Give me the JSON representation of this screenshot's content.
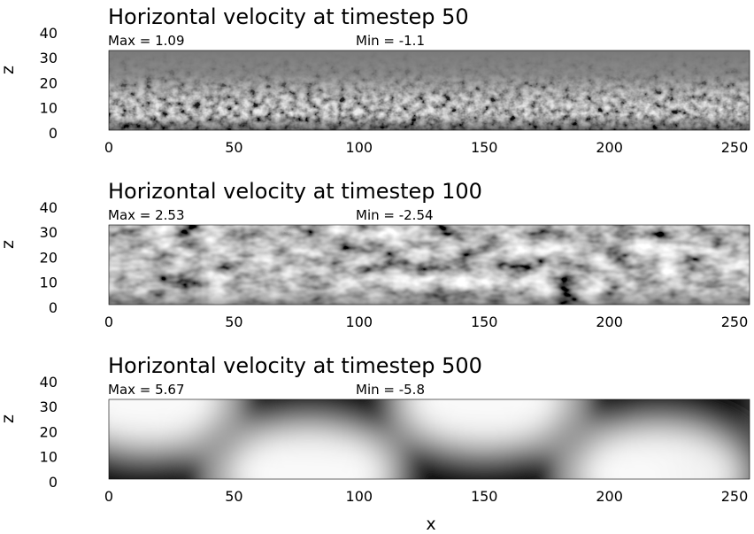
{
  "chart_data": [
    {
      "type": "heatmap",
      "title": "Horizontal velocity at timestep 50",
      "max_label": "Max = 1.09",
      "min_label": "Min = -1.1",
      "max": 1.09,
      "min": -1.1,
      "colormap": "grayscale",
      "pattern": "small-scale turbulence concentrated near z = 0-15",
      "xlabel": "",
      "ylabel": "z",
      "xlim": [
        0,
        256
      ],
      "ylim": [
        0,
        32
      ],
      "x_ticks": [
        "0",
        "50",
        "100",
        "150",
        "200",
        "250"
      ],
      "y_ticks": [
        "0",
        "10",
        "20",
        "30",
        "40"
      ]
    },
    {
      "type": "heatmap",
      "title": "Horizontal velocity at timestep 100",
      "max_label": "Max = 2.53",
      "min_label": "Min = -2.54",
      "max": 2.53,
      "min": -2.54,
      "colormap": "grayscale",
      "pattern": "medium-scale turbulent eddies filling the domain",
      "xlabel": "",
      "ylabel": "z",
      "xlim": [
        0,
        256
      ],
      "ylim": [
        0,
        32
      ],
      "x_ticks": [
        "0",
        "50",
        "100",
        "150",
        "200",
        "250"
      ],
      "y_ticks": [
        "0",
        "10",
        "20",
        "30",
        "40"
      ]
    },
    {
      "type": "heatmap",
      "title": "Horizontal velocity at timestep 500",
      "max_label": "Max = 5.67",
      "min_label": "Min = -5.8",
      "max": 5.67,
      "min": -5.8,
      "colormap": "grayscale",
      "pattern": "two large-scale convection cells; dark cores near top at x~85 and x~225, near bottom at x~5, x~145, x~256",
      "xlabel": "x",
      "ylabel": "z",
      "xlim": [
        0,
        256
      ],
      "ylim": [
        0,
        32
      ],
      "x_ticks": [
        "0",
        "50",
        "100",
        "150",
        "200",
        "250"
      ],
      "y_ticks": [
        "0",
        "10",
        "20",
        "30",
        "40"
      ]
    }
  ]
}
